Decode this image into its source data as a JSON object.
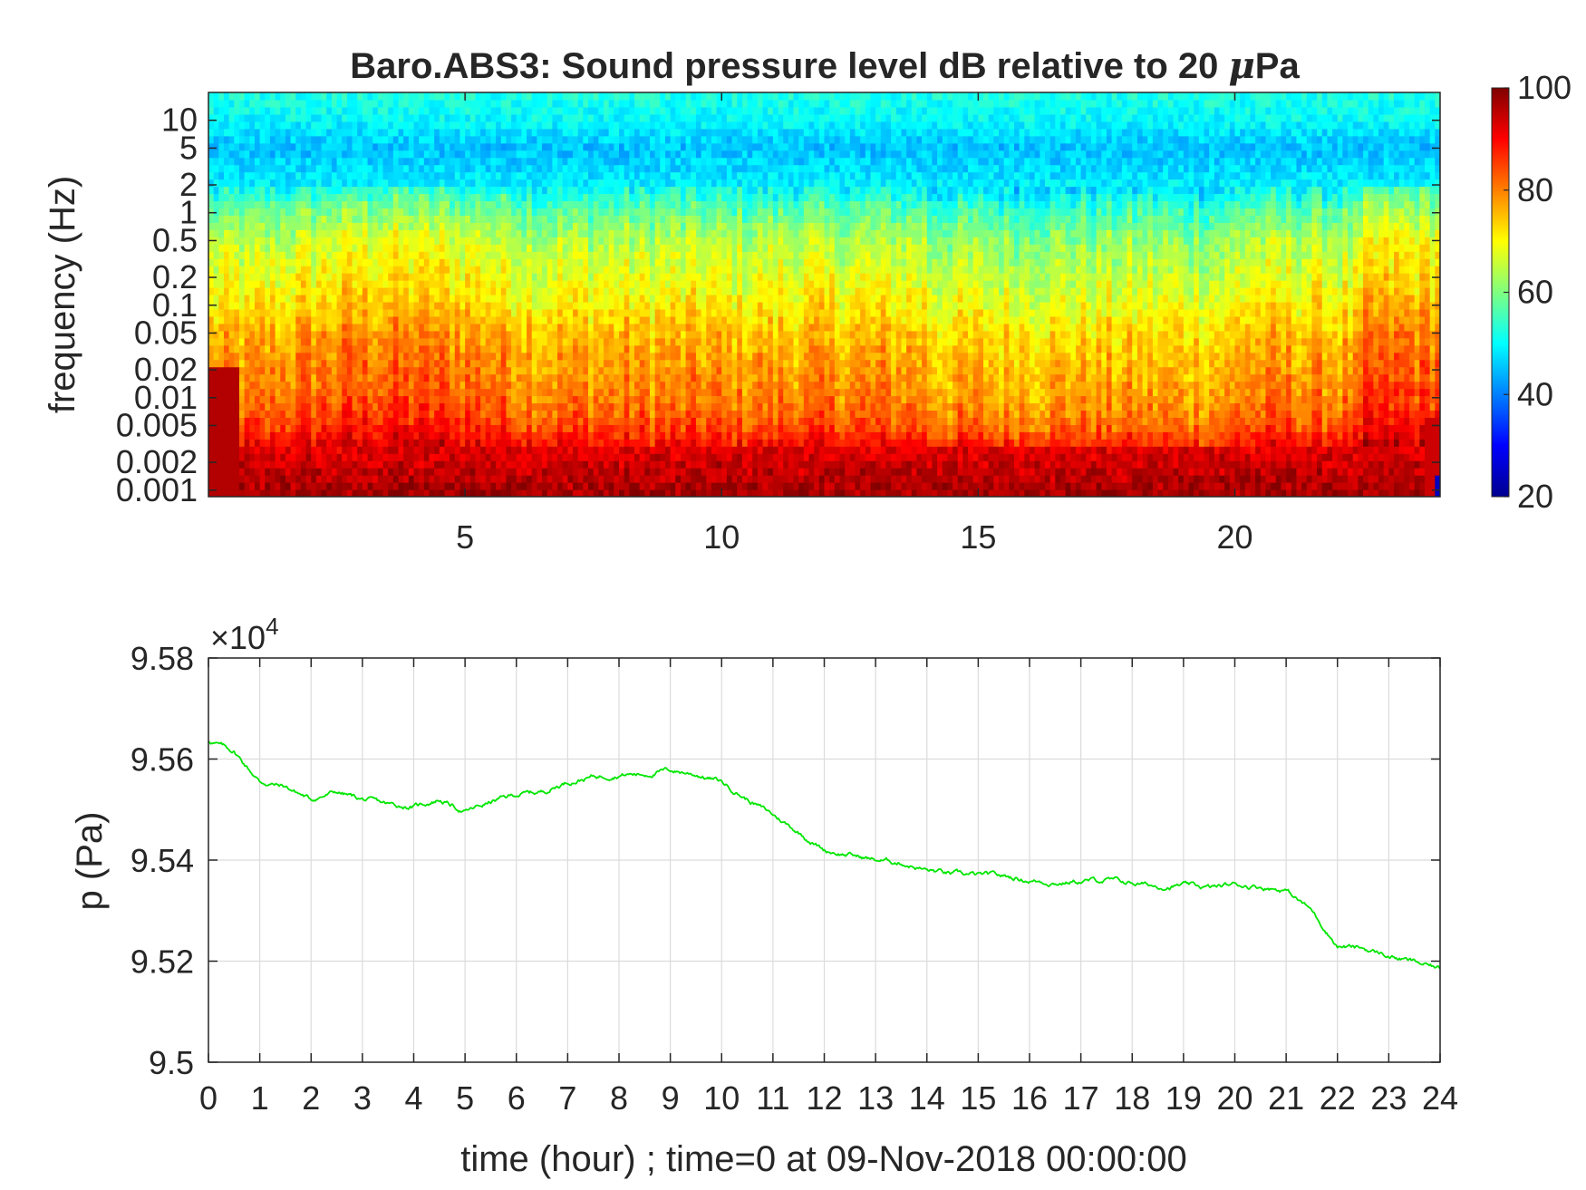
{
  "chart_data": [
    {
      "type": "heatmap",
      "title_prefix": "Baro.ABS3: Sound pressure level dB relative to 20 ",
      "title_mu": "μ",
      "title_suffix": "Pa",
      "xlabel": "",
      "ylabel": "frequency (Hz)",
      "x_range": [
        0,
        24
      ],
      "x_ticks": [
        5,
        10,
        15,
        20
      ],
      "y_scale": "log",
      "y_range": [
        0.00085,
        20
      ],
      "y_ticks": [
        0.001,
        0.002,
        0.005,
        0.01,
        0.02,
        0.05,
        0.1,
        0.2,
        0.5,
        1,
        2,
        5,
        10
      ],
      "y_tick_labels": [
        "0.001",
        "0.002",
        "0.005",
        "0.01",
        "0.02",
        "0.05",
        "0.1",
        "0.2",
        "0.5",
        "1",
        "2",
        "5",
        "10"
      ],
      "colormap": "jet",
      "clim": [
        20,
        100
      ],
      "colorbar_ticks": [
        20,
        40,
        60,
        80,
        100
      ],
      "time_frames": 240,
      "freq_bins": 56,
      "level_profile_db_by_frequency": [
        [
          0.001,
          95
        ],
        [
          0.002,
          92
        ],
        [
          0.003,
          90
        ],
        [
          0.005,
          84
        ],
        [
          0.01,
          80
        ],
        [
          0.02,
          78
        ],
        [
          0.05,
          75
        ],
        [
          0.1,
          71
        ],
        [
          0.2,
          68
        ],
        [
          0.5,
          64
        ],
        [
          1,
          58
        ],
        [
          2,
          49
        ],
        [
          5,
          45
        ],
        [
          10,
          50
        ],
        [
          20,
          52
        ]
      ],
      "notes": "dark red band below ~0.003 Hz; cyan/blue band above ~1 Hz; hotter at hours 1-6 and 23-24"
    },
    {
      "type": "line",
      "title": "",
      "xlabel": "time (hour) ; time=0 at 09-Nov-2018 00:00:00",
      "ylabel": "p (Pa)",
      "y_multiplier_label": "×10",
      "y_multiplier_exp": "4",
      "x_range": [
        0,
        24
      ],
      "x_ticks": [
        0,
        1,
        2,
        3,
        4,
        5,
        6,
        7,
        8,
        9,
        10,
        11,
        12,
        13,
        14,
        15,
        16,
        17,
        18,
        19,
        20,
        21,
        22,
        23,
        24
      ],
      "y_range": [
        9.5,
        9.58
      ],
      "y_ticks": [
        9.5,
        9.52,
        9.54,
        9.56,
        9.58
      ],
      "y_tick_labels": [
        "9.5",
        "9.52",
        "9.54",
        "9.56",
        "9.58"
      ],
      "grid": true,
      "line_color": "#00e600",
      "series": [
        {
          "x": [
            0,
            0.5,
            1.0,
            1.5,
            2.0,
            2.5,
            3.0,
            3.5,
            4.0,
            4.5,
            5.0,
            5.5,
            6.0,
            6.5,
            7.0,
            7.5,
            8.0,
            8.5,
            9.0,
            9.5,
            10.0,
            10.5,
            11.0,
            11.5,
            12.0,
            12.5,
            13.0,
            13.5,
            14.0,
            14.5,
            15.0,
            15.5,
            16.0,
            16.5,
            17.0,
            17.5,
            18.0,
            18.5,
            19.0,
            19.5,
            20.0,
            20.5,
            21.0,
            21.5,
            22.0,
            22.5,
            23.0,
            23.5,
            24.0
          ],
          "values": [
            9.5637,
            9.5615,
            9.5555,
            9.5545,
            9.552,
            9.5535,
            9.552,
            9.551,
            9.5505,
            9.552,
            9.5495,
            9.5515,
            9.553,
            9.5535,
            9.5555,
            9.5565,
            9.557,
            9.557,
            9.5578,
            9.557,
            9.5555,
            9.552,
            9.549,
            9.5455,
            9.542,
            9.541,
            9.54,
            9.5395,
            9.538,
            9.5372,
            9.537,
            9.5368,
            9.536,
            9.5355,
            9.5358,
            9.536,
            9.5355,
            9.5348,
            9.535,
            9.5345,
            9.5352,
            9.5348,
            9.534,
            9.53,
            9.523,
            9.5225,
            9.521,
            9.5198,
            9.5185
          ]
        }
      ]
    }
  ]
}
